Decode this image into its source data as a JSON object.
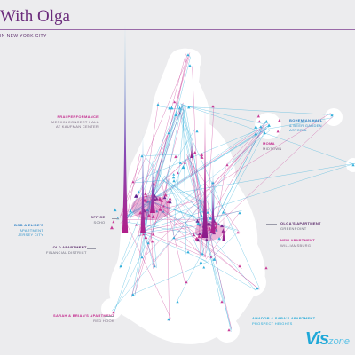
{
  "header": {
    "title": "With Olga",
    "subtitle": "IN NEW YORK CITY"
  },
  "places": {
    "fiaf": {
      "title": "FRAI PERFORMANCE",
      "line1": "MERKIN CONCERT HALL",
      "line2": "AT KAUFMAN CENTER"
    },
    "bohemian": {
      "title": "BOHEMIAN HALL",
      "line1": "& BEER GARDEN",
      "line2": "ASTORIA"
    },
    "moma": {
      "title": "MOMA",
      "line1": "MIDTOWN"
    },
    "office": {
      "title": "OFFICE",
      "line1": "SOHO"
    },
    "olga_apt": {
      "title": "OLGA'S APARTMENT",
      "line1": "GREENPOINT"
    },
    "bob_elise": {
      "title": "BOB & ELISE'S",
      "line1": "APARTMENT",
      "line2": "JERSEY CITY"
    },
    "old_apt": {
      "title": "OLD APARTMENT",
      "line1": "FINANCIAL DISTRICT"
    },
    "new_apt": {
      "title": "NEW APARTMENT",
      "line1": "WILLIAMSBURG"
    },
    "sarah_brian": {
      "title": "SARAH & BRIAN'S APARTMENT",
      "line1": "RED HOOK"
    },
    "amador": {
      "title": "AMADOR & SARA'S APARTMENT",
      "line1": "PROSPECT HEIGHTS"
    }
  },
  "watermark": {
    "vis": "Vis",
    "zone": "zone"
  },
  "colors": {
    "background": "#ececee",
    "land": "#ffffff",
    "walking": "#1fa8d8",
    "transit": "#c42b8e",
    "peak": "#5a1a8a"
  }
}
